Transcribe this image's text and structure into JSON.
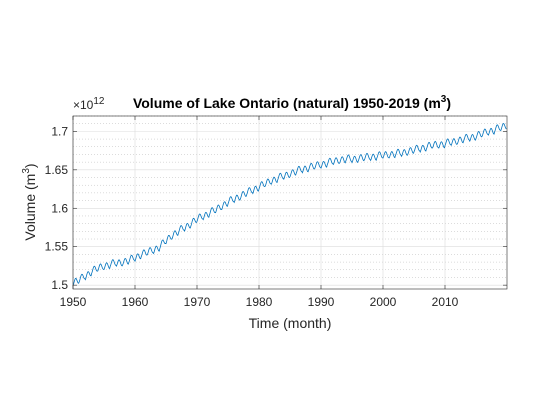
{
  "chart_data": {
    "type": "line",
    "title_main": "Volume of Lake Ontario (natural) 1950-2019 (m",
    "title_sup": "3",
    "title_close": ")",
    "xlabel": "Time (month)",
    "ylabel_main": "Volume (m",
    "ylabel_sup": "3",
    "ylabel_close": ")",
    "exponent_base": "×10",
    "exponent_power": "12",
    "xlim": [
      1950,
      2020
    ],
    "ylim": [
      1.495,
      1.72
    ],
    "x_ticks": [
      1950,
      1960,
      1970,
      1980,
      1990,
      2000,
      2010
    ],
    "x_tick_labels": [
      "1950",
      "1960",
      "1970",
      "1980",
      "1990",
      "2000",
      "2010"
    ],
    "y_ticks": [
      1.5,
      1.55,
      1.6,
      1.65,
      1.7
    ],
    "y_tick_labels": [
      "1.5",
      "1.55",
      "1.6",
      "1.65",
      "1.7"
    ],
    "grid": true,
    "minor_grid": true,
    "line_color": "#0072BD",
    "series": [
      {
        "sampling": "annual means; the plotted line is monthly with a seasonal cycle of roughly ±0.004",
        "x": [
          1950,
          1951,
          1952,
          1953,
          1954,
          1955,
          1956,
          1957,
          1958,
          1959,
          1960,
          1961,
          1962,
          1963,
          1964,
          1965,
          1966,
          1967,
          1968,
          1969,
          1970,
          1971,
          1972,
          1973,
          1974,
          1975,
          1976,
          1977,
          1978,
          1979,
          1980,
          1981,
          1982,
          1983,
          1984,
          1985,
          1986,
          1987,
          1988,
          1989,
          1990,
          1991,
          1992,
          1993,
          1994,
          1995,
          1996,
          1997,
          1998,
          1999,
          2000,
          2001,
          2002,
          2003,
          2004,
          2005,
          2006,
          2007,
          2008,
          2009,
          2010,
          2011,
          2012,
          2013,
          2014,
          2015,
          2016,
          2017,
          2018,
          2019
        ],
        "values": [
          1.503,
          1.507,
          1.512,
          1.518,
          1.522,
          1.525,
          1.527,
          1.529,
          1.53,
          1.532,
          1.536,
          1.54,
          1.543,
          1.546,
          1.55,
          1.558,
          1.565,
          1.57,
          1.575,
          1.58,
          1.586,
          1.59,
          1.594,
          1.598,
          1.603,
          1.608,
          1.612,
          1.616,
          1.62,
          1.624,
          1.628,
          1.632,
          1.636,
          1.639,
          1.642,
          1.645,
          1.648,
          1.651,
          1.653,
          1.655,
          1.657,
          1.659,
          1.661,
          1.663,
          1.664,
          1.664,
          1.665,
          1.666,
          1.667,
          1.668,
          1.669,
          1.67,
          1.671,
          1.672,
          1.674,
          1.676,
          1.678,
          1.68,
          1.682,
          1.683,
          1.684,
          1.686,
          1.688,
          1.69,
          1.692,
          1.694,
          1.697,
          1.7,
          1.702,
          1.705
        ]
      }
    ]
  }
}
